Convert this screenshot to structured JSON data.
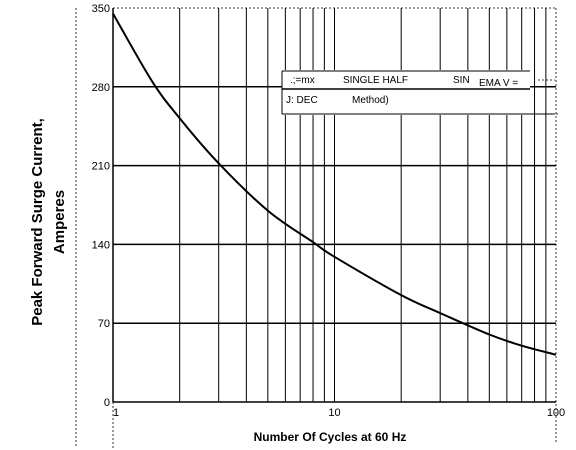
{
  "chart_data": {
    "type": "line",
    "x_scale": "log",
    "xlim": [
      1,
      100
    ],
    "ylim": [
      0,
      350
    ],
    "x_ticks": [
      {
        "value": 1,
        "label": "1"
      },
      {
        "value": 10,
        "label": "10"
      },
      {
        "value": 100,
        "label": "100"
      }
    ],
    "y_ticks": [
      {
        "value": 0,
        "label": "0"
      },
      {
        "value": 70,
        "label": "70"
      },
      {
        "value": 140,
        "label": "140"
      },
      {
        "value": 210,
        "label": "210"
      },
      {
        "value": 280,
        "label": "280"
      },
      {
        "value": 350,
        "label": "350"
      }
    ],
    "xlabel": "Number Of Cycles at 60 Hz",
    "ylabel_line1": "Peak Forward Surge Current,",
    "ylabel_line2": "Amperes",
    "grid": true,
    "annotation": {
      "line1_a": ".;=mx",
      "line1_b": "SINGLE HALF",
      "line1_c": "SIN",
      "line1_d": "EMA V =",
      "line2_a": "J: DEC",
      "line2_b": "Method)"
    },
    "series": [
      {
        "x": [
          1,
          1.5,
          2,
          3,
          5,
          8,
          10,
          20,
          30,
          50,
          70,
          100
        ],
        "y": [
          345,
          285,
          252,
          212,
          170,
          142,
          129,
          95,
          79,
          60,
          50,
          42
        ]
      }
    ]
  }
}
